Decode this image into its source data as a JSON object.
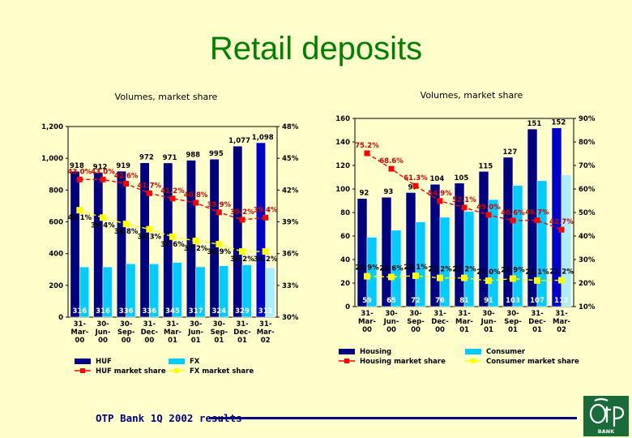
{
  "page": {
    "title": "Retail deposits",
    "footer": "OTP Bank 1Q 2002 results",
    "logo_text": "BANK"
  },
  "colors": {
    "background": "#ffffcc",
    "title": "#008000",
    "dark_blue": "#000080",
    "light_blue": "#00ccff",
    "red": "#ff0000",
    "yellow": "#ffff00",
    "label_red": "#cc0000",
    "bar_white": "#ffffff"
  },
  "chart_data": [
    {
      "type": "bar",
      "subtitle": "Volumes, market share",
      "categories": [
        "31-\nMar-\n00",
        "30-\nJun-\n00",
        "30-\nSep-\n00",
        "31-\nDec-\n00",
        "31-\nMar-\n01",
        "30-\nJun-\n01",
        "30-\nSep-\n01",
        "31-\nDec-\n01",
        "31-\nMar-\n02"
      ],
      "ylim_left": [
        0,
        1200
      ],
      "yticks_left": [
        "0",
        "200",
        "400",
        "600",
        "800",
        "1,000",
        "1,200"
      ],
      "ylim_right": [
        30,
        48
      ],
      "yticks_right": [
        "30%",
        "33%",
        "36%",
        "39%",
        "42%",
        "45%",
        "48%"
      ],
      "series": [
        {
          "name": "HUF",
          "kind": "bar",
          "values": [
            918,
            912,
            919,
            972,
            971,
            988,
            995,
            1077,
            1098
          ],
          "labels": [
            "918",
            "912",
            "919",
            "972",
            "971",
            "988",
            "995",
            "1,077",
            "1,098"
          ]
        },
        {
          "name": "FX",
          "kind": "bar",
          "values": [
            316,
            316,
            336,
            336,
            345,
            317,
            324,
            329,
            312
          ],
          "labels": [
            "316",
            "316",
            "336",
            "336",
            "345",
            "317",
            "324",
            "329",
            "312"
          ]
        },
        {
          "name": "HUF market share",
          "kind": "line",
          "axis": "right",
          "values": [
            43.0,
            43.0,
            42.6,
            41.7,
            41.2,
            40.8,
            39.9,
            39.2,
            39.4
          ],
          "labels": [
            "43.0%",
            "43.0%",
            "42.6%",
            "41.7%",
            "41.2%",
            "40.8%",
            "39.9%",
            "39.2%",
            "39.4%"
          ]
        },
        {
          "name": "FX market share",
          "kind": "line",
          "axis": "right",
          "values": [
            40.1,
            39.4,
            38.8,
            38.3,
            37.6,
            37.2,
            36.9,
            36.2,
            36.2
          ],
          "labels": [
            "40.1%",
            "39.4%",
            "38.8%",
            "38.3%",
            "37.6%",
            "37.2%",
            "36.9%",
            "36.2%",
            "36.2%"
          ]
        }
      ],
      "legend_position": "bottom"
    },
    {
      "type": "bar",
      "subtitle": "Volumes, market share",
      "categories": [
        "31-\nMar-\n00",
        "30-\nJun-\n00",
        "30-\nSep-\n00",
        "31-\nDec-\n00",
        "31-\nMar-\n01",
        "30-\nJun-\n01",
        "30-\nSep-\n01",
        "31-\nDec-\n01",
        "31-\nMar-\n02"
      ],
      "ylim_left": [
        0,
        160
      ],
      "yticks_left": [
        "0",
        "20",
        "40",
        "60",
        "80",
        "100",
        "120",
        "140",
        "160"
      ],
      "ylim_right": [
        10,
        90
      ],
      "yticks_right": [
        "10%",
        "20%",
        "30%",
        "40%",
        "50%",
        "60%",
        "70%",
        "80%",
        "90%"
      ],
      "series": [
        {
          "name": "Housing",
          "kind": "bar",
          "values": [
            92,
            93,
            97,
            104,
            105,
            115,
            127,
            151,
            152
          ],
          "labels": [
            "92",
            "93",
            "97",
            "104",
            "105",
            "115",
            "127",
            "151",
            "152"
          ]
        },
        {
          "name": "Consumer",
          "kind": "bar",
          "values": [
            59,
            65,
            72,
            76,
            81,
            91,
            103,
            107,
            112
          ],
          "labels": [
            "59",
            "65",
            "72",
            "76",
            "81",
            "91",
            "103",
            "107",
            "112"
          ]
        },
        {
          "name": "Housing market share",
          "kind": "line",
          "axis": "right",
          "values": [
            75.2,
            68.6,
            61.3,
            54.9,
            52.1,
            49.0,
            46.6,
            46.7,
            42.7
          ],
          "labels": [
            "75.2%",
            "68.6%",
            "61.3%",
            "54.9%",
            "52.1%",
            "49.0%",
            "46.6%",
            "46.7%",
            "42.7%"
          ]
        },
        {
          "name": "Consumer market share",
          "kind": "line",
          "axis": "right",
          "values": [
            22.9,
            22.6,
            23.1,
            22.2,
            22.2,
            21.0,
            21.9,
            21.1,
            21.2
          ],
          "labels": [
            "22.9%",
            "22.6%",
            "23.1%",
            "22.2%",
            "22.2%",
            "21.0%",
            "21.9%",
            "21.1%",
            "21.2%"
          ]
        }
      ],
      "legend_position": "bottom"
    }
  ]
}
